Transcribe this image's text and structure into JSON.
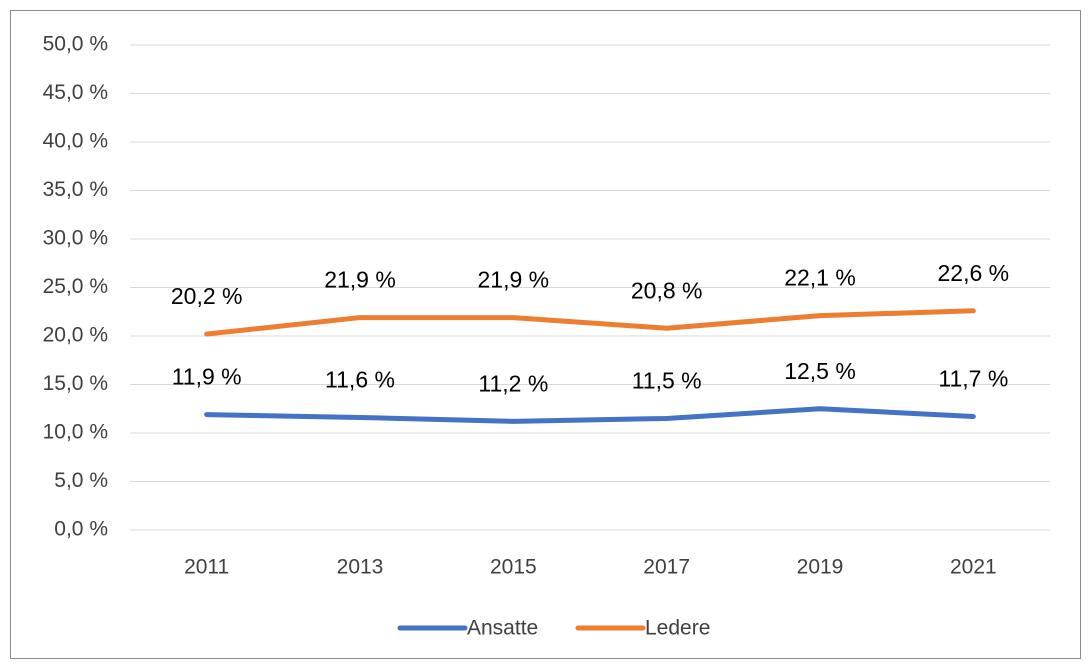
{
  "chart_data": {
    "type": "line",
    "categories": [
      "2011",
      "2013",
      "2015",
      "2017",
      "2019",
      "2021"
    ],
    "series": [
      {
        "name": "Ansatte",
        "color": "#4472c4",
        "values": [
          11.9,
          11.6,
          11.2,
          11.5,
          12.5,
          11.7
        ],
        "value_labels": [
          "11,9 %",
          "11,6 %",
          "11,2 %",
          "11,5 %",
          "12,5 %",
          "11,7 %"
        ]
      },
      {
        "name": "Ledere",
        "color": "#ed7d31",
        "values": [
          20.2,
          21.9,
          21.9,
          20.8,
          22.1,
          22.6
        ],
        "value_labels": [
          "20,2 %",
          "21,9 %",
          "21,9 %",
          "20,8 %",
          "22,1 %",
          "22,6 %"
        ]
      }
    ],
    "ylim": [
      0,
      50
    ],
    "yticks": [
      {
        "value": 0,
        "label": "0,0 %"
      },
      {
        "value": 5,
        "label": "5,0 %"
      },
      {
        "value": 10,
        "label": "10,0 %"
      },
      {
        "value": 15,
        "label": "15,0 %"
      },
      {
        "value": 20,
        "label": "20,0 %"
      },
      {
        "value": 25,
        "label": "25,0 %"
      },
      {
        "value": 30,
        "label": "30,0 %"
      },
      {
        "value": 35,
        "label": "35,0 %"
      },
      {
        "value": 40,
        "label": "40,0 %"
      },
      {
        "value": 45,
        "label": "45,0 %"
      },
      {
        "value": 50,
        "label": "50,0 %"
      }
    ],
    "grid": true,
    "legend": "bottom"
  }
}
